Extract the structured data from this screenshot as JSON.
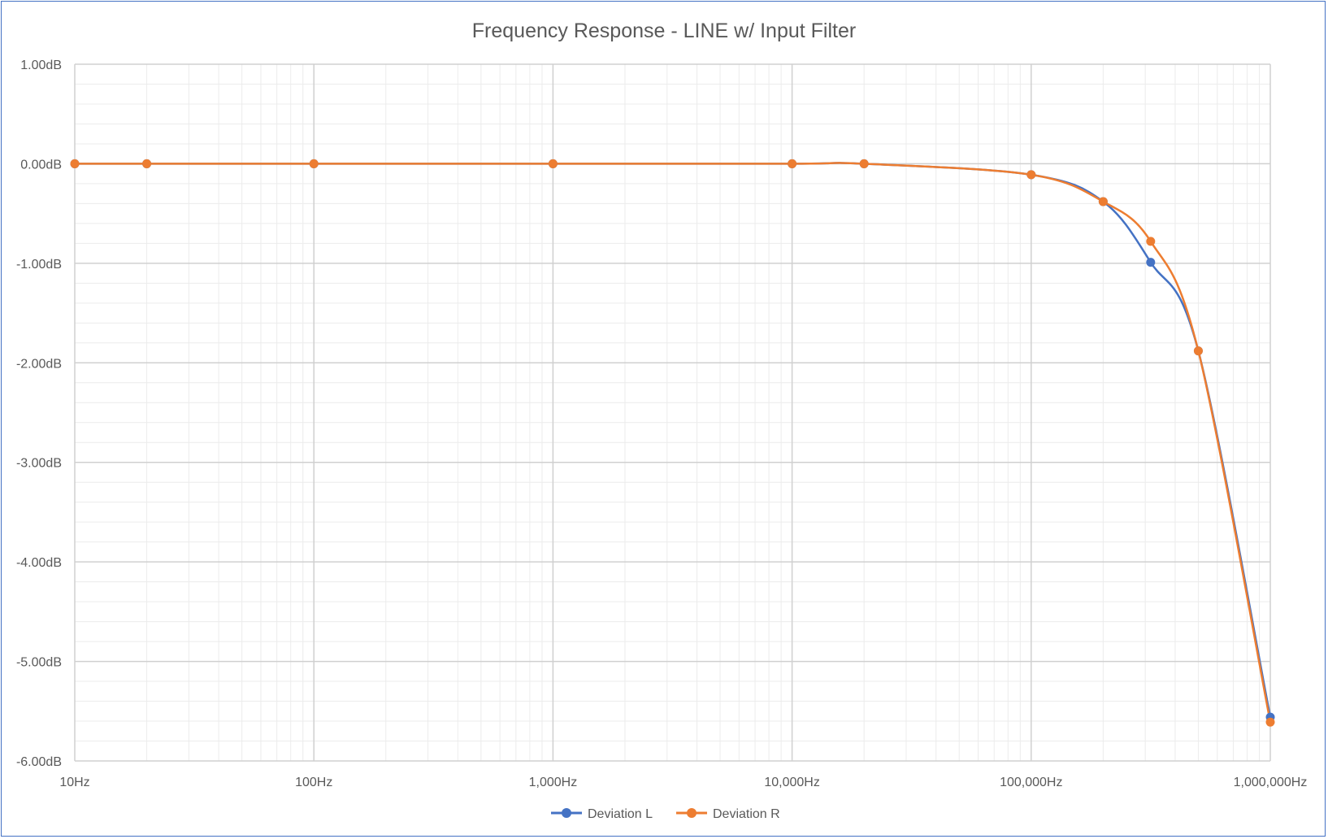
{
  "chart_data": {
    "type": "line",
    "title": "Frequency Response - LINE w/ Input Filter",
    "xlabel": "",
    "ylabel": "",
    "x_scale": "log",
    "xlim": [
      10,
      1000000
    ],
    "ylim": [
      -6,
      1
    ],
    "grid": true,
    "legend_position": "bottom",
    "x": [
      10,
      20,
      100,
      1000,
      10000,
      20000,
      100000,
      200000,
      316000,
      500000,
      1000000
    ],
    "x_tick_values": [
      10,
      100,
      1000,
      10000,
      100000,
      1000000
    ],
    "x_tick_labels": [
      "10Hz",
      "100Hz",
      "1,000Hz",
      "10,000Hz",
      "100,000Hz",
      "1,000,000Hz"
    ],
    "y_tick_values": [
      1,
      0,
      -1,
      -2,
      -3,
      -4,
      -5,
      -6
    ],
    "y_tick_labels": [
      "1.00dB",
      "0.00dB",
      "-1.00dB",
      "-2.00dB",
      "-3.00dB",
      "-4.00dB",
      "-5.00dB",
      "-6.00dB"
    ],
    "series": [
      {
        "name": "Deviation L",
        "color": "#4472c4",
        "values": [
          0,
          0,
          0,
          0,
          0,
          0,
          -0.11,
          -0.38,
          -0.99,
          -1.88,
          -5.56
        ]
      },
      {
        "name": "Deviation R",
        "color": "#ed7d31",
        "values": [
          0,
          0,
          0,
          0,
          0,
          0,
          -0.11,
          -0.38,
          -0.78,
          -1.88,
          -5.61
        ]
      }
    ]
  }
}
